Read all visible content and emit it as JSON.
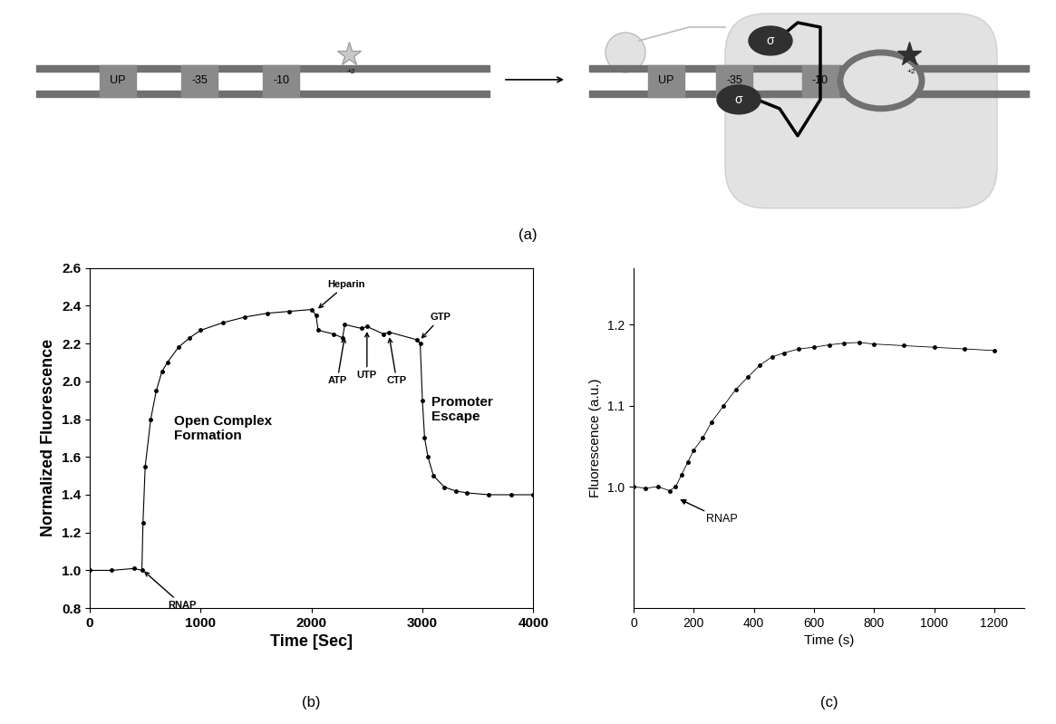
{
  "diagram": {
    "caption": "(a)",
    "elements": [
      "UP",
      "-35",
      "-10"
    ],
    "position_label": "+2",
    "subunit_label": "σ"
  },
  "chart_data": [
    {
      "type": "line",
      "caption": "(b)",
      "x_label": "Time [Sec]",
      "y_label": "Normalized Fluorescence",
      "xlim": [
        0,
        4000
      ],
      "xticks": [
        0,
        1000,
        2000,
        3000,
        4000
      ],
      "ylim": [
        0.8,
        2.6
      ],
      "yticks": [
        0.8,
        {
          "value": 1,
          "label": "1.0"
        },
        1.2,
        1.4,
        1.6,
        1.8,
        {
          "value": 2,
          "label": "2.0"
        },
        2.2,
        2.4,
        2.6
      ],
      "color": "#000000",
      "marker": "o",
      "line_style": "solid",
      "x": [
        0,
        200,
        400,
        470,
        480,
        500,
        550,
        600,
        650,
        700,
        800,
        900,
        1000,
        1200,
        1400,
        1600,
        1800,
        2000,
        2040,
        2060,
        2200,
        2280,
        2300,
        2450,
        2500,
        2650,
        2700,
        2950,
        2980,
        3000,
        3020,
        3050,
        3100,
        3200,
        3300,
        3400,
        3600,
        3800,
        4000
      ],
      "values": [
        1.0,
        1.0,
        1.01,
        1.0,
        1.25,
        1.55,
        1.8,
        1.95,
        2.05,
        2.1,
        2.18,
        2.23,
        2.27,
        2.31,
        2.34,
        2.36,
        2.37,
        2.38,
        2.35,
        2.27,
        2.25,
        2.23,
        2.3,
        2.28,
        2.29,
        2.25,
        2.26,
        2.22,
        2.2,
        1.9,
        1.7,
        1.6,
        1.5,
        1.44,
        1.42,
        1.41,
        1.4,
        1.4,
        1.4
      ],
      "annotations": [
        {
          "text": "RNAP",
          "x": 480,
          "y": 1.0
        },
        {
          "text": "Heparin",
          "x": 2050,
          "y": 2.38
        },
        {
          "text": "ATP",
          "x": 2300,
          "y": 2.24
        },
        {
          "text": "UTP",
          "x": 2500,
          "y": 2.27
        },
        {
          "text": "CTP",
          "x": 2700,
          "y": 2.24
        },
        {
          "text": "GTP",
          "x": 2980,
          "y": 2.22
        }
      ],
      "labels": [
        {
          "text": "Open Complex\nFormation",
          "x": 760,
          "y": 1.75
        },
        {
          "text": "Promoter\nEscape",
          "x": 3080,
          "y": 1.85
        }
      ]
    },
    {
      "type": "line",
      "caption": "(c)",
      "x_label": "Time (s)",
      "y_label": "Fluorescence (a.u.)",
      "xlim": [
        0,
        1300
      ],
      "xticks": [
        0,
        200,
        400,
        600,
        800,
        1000,
        1200
      ],
      "ylim": [
        0.85,
        1.27
      ],
      "yticks": [
        {
          "value": 1,
          "label": "1.0"
        },
        1.1,
        1.2
      ],
      "color": "#000000",
      "marker": "o",
      "line_style": "solid",
      "x": [
        0,
        40,
        80,
        120,
        140,
        160,
        180,
        200,
        230,
        260,
        300,
        340,
        380,
        420,
        460,
        500,
        550,
        600,
        650,
        700,
        750,
        800,
        900,
        1000,
        1100,
        1200
      ],
      "values": [
        1.0,
        0.998,
        1.0,
        0.995,
        1.0,
        1.015,
        1.03,
        1.045,
        1.06,
        1.08,
        1.1,
        1.12,
        1.135,
        1.15,
        1.16,
        1.165,
        1.17,
        1.172,
        1.175,
        1.177,
        1.178,
        1.176,
        1.174,
        1.172,
        1.17,
        1.168
      ],
      "annotations": [
        {
          "text": "RNAP",
          "x": 150,
          "y": 0.985
        }
      ],
      "labels": []
    }
  ]
}
